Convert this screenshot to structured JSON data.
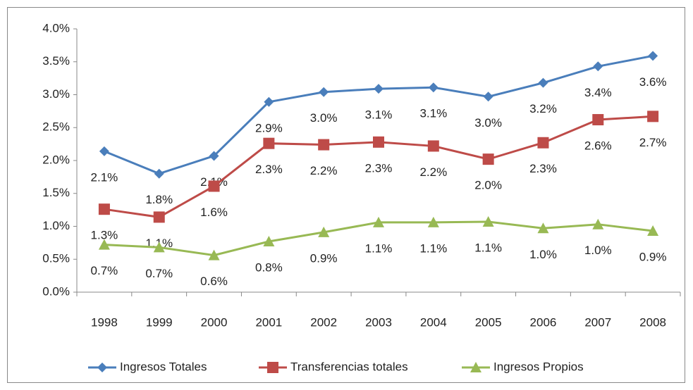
{
  "chart_data": {
    "type": "line",
    "categories": [
      "1998",
      "1999",
      "2000",
      "2001",
      "2002",
      "2003",
      "2004",
      "2005",
      "2006",
      "2007",
      "2008"
    ],
    "series": [
      {
        "name": "Ingresos Totales",
        "color": "#4a7ebb",
        "marker": "diamond",
        "values": [
          2.14,
          1.8,
          2.07,
          2.89,
          3.04,
          3.09,
          3.11,
          2.97,
          3.18,
          3.43,
          3.59
        ],
        "value_labels": [
          "2.1%",
          "1.8%",
          "2.1%",
          "2.9%",
          "3.0%",
          "3.1%",
          "3.1%",
          "3.0%",
          "3.2%",
          "3.4%",
          "3.6%"
        ]
      },
      {
        "name": "Transferencias totales",
        "color": "#be4b48",
        "marker": "square",
        "values": [
          1.26,
          1.14,
          1.61,
          2.26,
          2.24,
          2.28,
          2.22,
          2.02,
          2.27,
          2.62,
          2.67
        ],
        "value_labels": [
          "1.3%",
          "1.1%",
          "1.6%",
          "2.3%",
          "2.2%",
          "2.3%",
          "2.2%",
          "2.0%",
          "2.3%",
          "2.6%",
          "2.7%"
        ]
      },
      {
        "name": "Ingresos Propios",
        "color": "#98b954",
        "marker": "triangle",
        "values": [
          0.72,
          0.68,
          0.56,
          0.77,
          0.91,
          1.06,
          1.06,
          1.07,
          0.97,
          1.03,
          0.93
        ],
        "value_labels": [
          "0.7%",
          "0.7%",
          "0.6%",
          "0.8%",
          "0.9%",
          "1.1%",
          "1.1%",
          "1.1%",
          "1.0%",
          "1.0%",
          "0.9%"
        ]
      }
    ],
    "ylim": [
      0,
      4.0
    ],
    "yticks": [
      {
        "value": 0,
        "label": "0.0%"
      },
      {
        "value": 0.5,
        "label": "0.5%"
      },
      {
        "value": 1.0,
        "label": "1.0%"
      },
      {
        "value": 1.5,
        "label": "1.5%"
      },
      {
        "value": 2.0,
        "label": "2.0%"
      },
      {
        "value": 2.5,
        "label": "2.5%"
      },
      {
        "value": 3.0,
        "label": "3.0%"
      },
      {
        "value": 3.5,
        "label": "3.5%"
      },
      {
        "value": 4.0,
        "label": "4.0%"
      }
    ],
    "grid": false,
    "legend": "bottom"
  }
}
